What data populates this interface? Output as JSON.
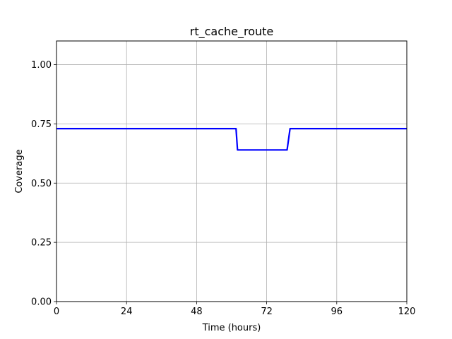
{
  "chart_data": {
    "type": "line",
    "title": "rt_cache_route",
    "xlabel": "Time (hours)",
    "ylabel": "Coverage",
    "xlim": [
      0,
      120
    ],
    "ylim": [
      0.0,
      1.1
    ],
    "x_ticks": [
      0,
      24,
      48,
      72,
      96,
      120
    ],
    "x_tick_labels": [
      "0",
      "24",
      "48",
      "72",
      "96",
      "120"
    ],
    "y_ticks": [
      0.0,
      0.25,
      0.5,
      0.75,
      1.0
    ],
    "y_tick_labels": [
      "0.00",
      "0.25",
      "0.50",
      "0.75",
      "1.00"
    ],
    "grid": true,
    "series": [
      {
        "color": "#0000ff",
        "x": [
          0,
          61.5,
          62,
          79,
          80,
          120
        ],
        "y": [
          0.73,
          0.73,
          0.64,
          0.64,
          0.73,
          0.73
        ]
      }
    ]
  }
}
